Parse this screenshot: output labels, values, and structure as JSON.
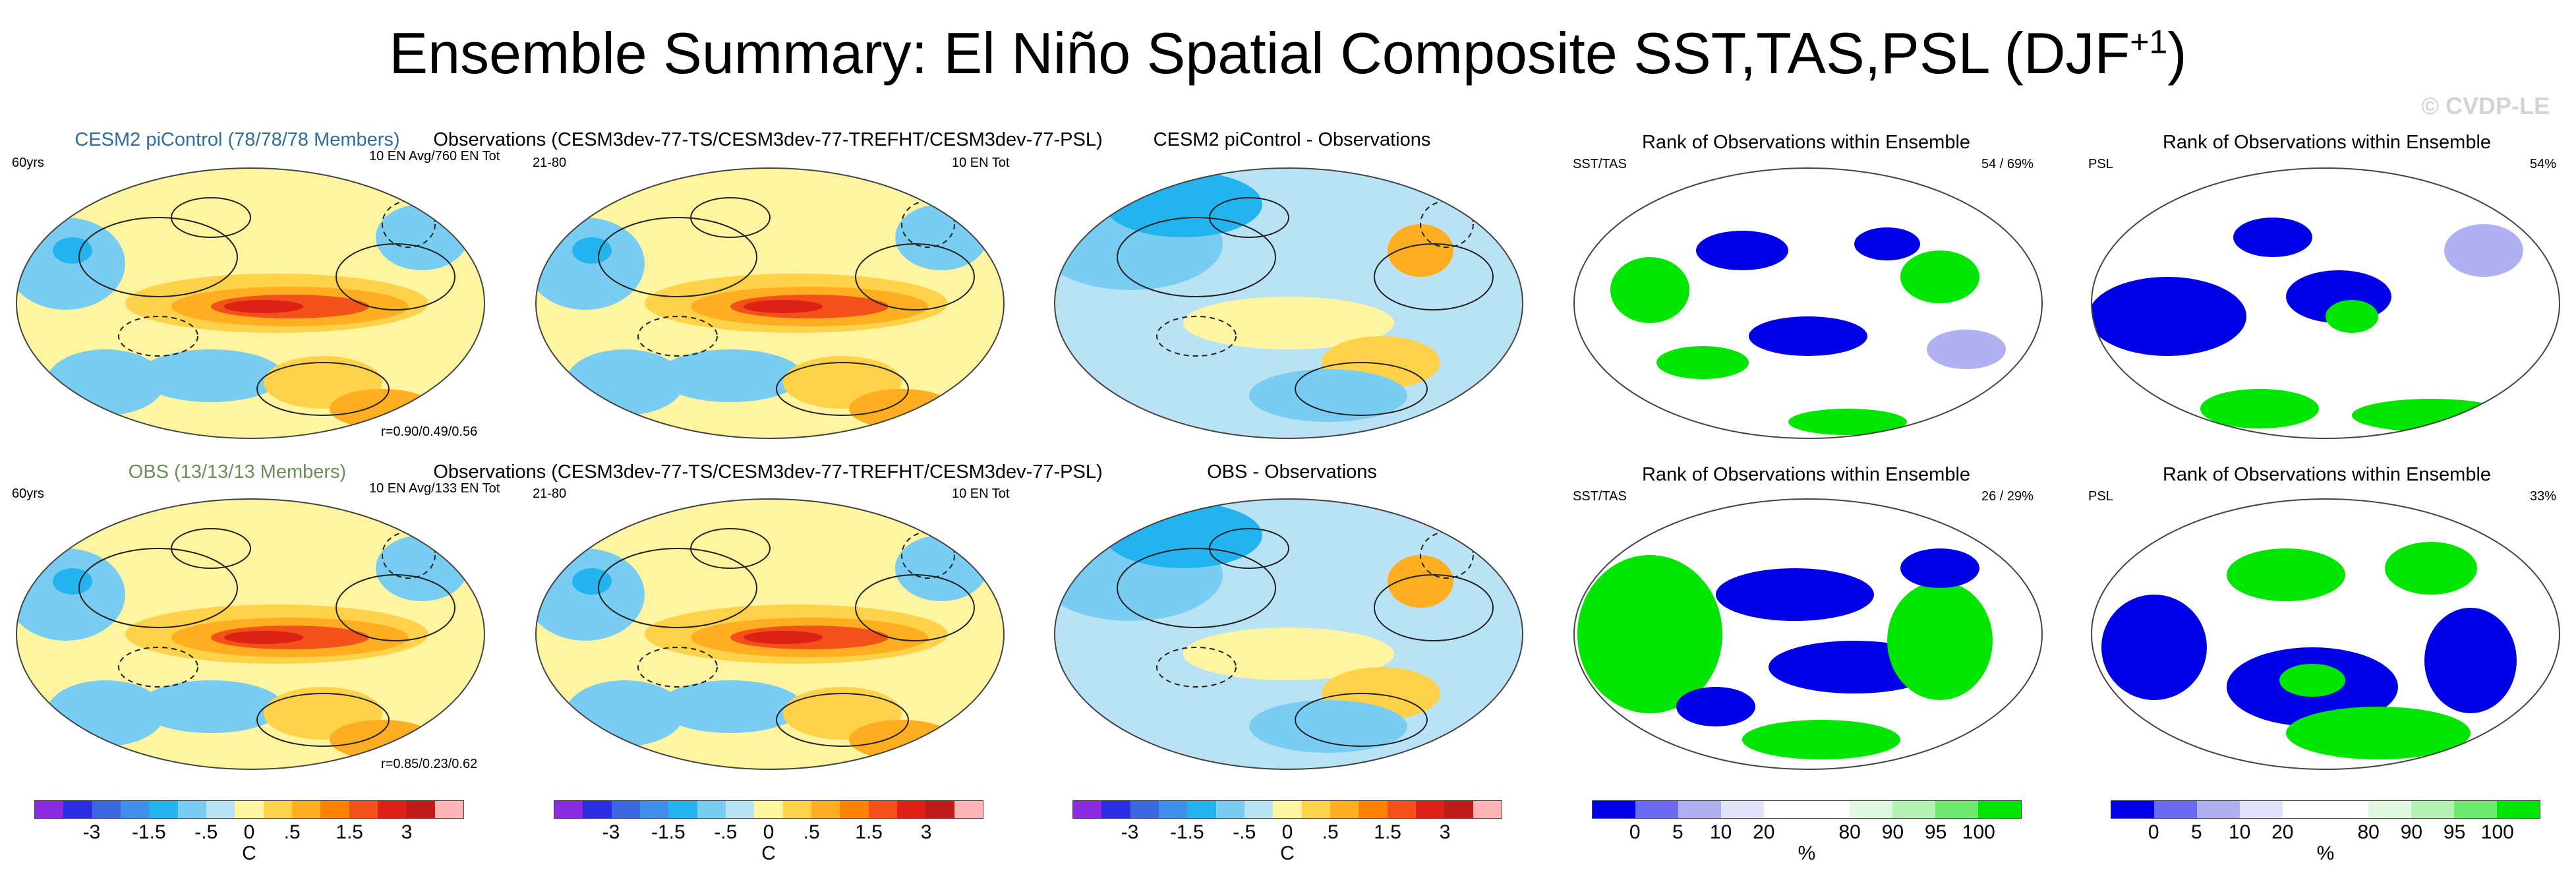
{
  "title_main": "Ensemble Summary: El Niño Spatial Composite SST,TAS,PSL (DJF",
  "title_sup": "+1",
  "title_close": ")",
  "watermark": "© CVDP-LE",
  "panels": {
    "r1c1": {
      "title": "CESM2 piControl (78/78/78 Members)",
      "left": "60yrs",
      "right": "10 EN Avg/760 EN Tot",
      "bottom": "r=0.90/0.49/0.56"
    },
    "r1c2": {
      "title": "Observations (CESM3dev-77-TS/CESM3dev-77-TREFHT/CESM3dev-77-PSL)",
      "left": "21-80",
      "right": "10 EN Tot"
    },
    "r1c3": {
      "title": "CESM2 piControl - Observations"
    },
    "r1c4": {
      "title": "Rank of Observations within Ensemble",
      "left": "SST/TAS",
      "right": "54 /  69%"
    },
    "r1c5": {
      "title": "Rank of Observations within Ensemble",
      "left": "PSL",
      "right": "54%"
    },
    "r2c1": {
      "title": "OBS (13/13/13 Members)",
      "left": "60yrs",
      "right": "10 EN Avg/133 EN Tot",
      "bottom": "r=0.85/0.23/0.62"
    },
    "r2c2": {
      "title": "Observations (CESM3dev-77-TS/CESM3dev-77-TREFHT/CESM3dev-77-PSL)",
      "left": "21-80",
      "right": "10 EN Tot"
    },
    "r2c3": {
      "title": "OBS - Observations"
    },
    "r2c4": {
      "title": "Rank of Observations within Ensemble",
      "left": "SST/TAS",
      "right": "26 /  29%"
    },
    "r2c5": {
      "title": "Rank of Observations within Ensemble",
      "left": "PSL",
      "right": "33%"
    }
  },
  "colorbars": {
    "temp": {
      "colors": [
        "#8a2be2",
        "#2b2be0",
        "#3a66e0",
        "#3f8fea",
        "#23b4f0",
        "#79cdf2",
        "#b9e3f5",
        "#fff5a0",
        "#ffd24a",
        "#ffae22",
        "#ff8200",
        "#f2511a",
        "#dd2215",
        "#c01a1a",
        "#ffb3b3"
      ],
      "ticks": [
        "-3",
        "-1.5",
        "-.5",
        "0",
        ".5",
        "1.5",
        "3"
      ],
      "unit": "C"
    },
    "rank": {
      "colors": [
        "#0000e6",
        "#6a6af5",
        "#b0b0f5",
        "#e2e2fb",
        "#ffffff",
        "#ffffff",
        "#dff8df",
        "#b4f2b4",
        "#6ce86c",
        "#00e600"
      ],
      "ticks": [
        "0",
        "5",
        "10",
        "20",
        "80",
        "90",
        "95",
        "100"
      ],
      "unit": "%"
    }
  },
  "chart_data": [
    {
      "type": "heatmap",
      "title": "CESM2 piControl (78/78/78 Members)",
      "variable": "SST/TAS/PSL composite",
      "units": "C",
      "pattern_correlation": "r=0.90/0.49/0.56"
    },
    {
      "type": "heatmap",
      "title": "Observations (CESM3dev-77-TS/CESM3dev-77-TREFHT/CESM3dev-77-PSL)",
      "units": "C"
    },
    {
      "type": "heatmap",
      "title": "CESM2 piControl - Observations",
      "units": "C"
    },
    {
      "type": "heatmap",
      "title": "Rank of Observations within Ensemble",
      "subtitle": "SST/TAS",
      "summary": "54 /  69%",
      "units": "%"
    },
    {
      "type": "heatmap",
      "title": "Rank of Observations within Ensemble",
      "subtitle": "PSL",
      "summary": "54%",
      "units": "%"
    },
    {
      "type": "heatmap",
      "title": "OBS (13/13/13 Members)",
      "units": "C",
      "pattern_correlation": "r=0.85/0.23/0.62"
    },
    {
      "type": "heatmap",
      "title": "Observations (CESM3dev-77-TS/CESM3dev-77-TREFHT/CESM3dev-77-PSL)",
      "units": "C"
    },
    {
      "type": "heatmap",
      "title": "OBS - Observations",
      "units": "C"
    },
    {
      "type": "heatmap",
      "title": "Rank of Observations within Ensemble",
      "subtitle": "SST/TAS",
      "summary": "26 /  29%",
      "units": "%"
    },
    {
      "type": "heatmap",
      "title": "Rank of Observations within Ensemble",
      "subtitle": "PSL",
      "summary": "33%",
      "units": "%"
    }
  ]
}
